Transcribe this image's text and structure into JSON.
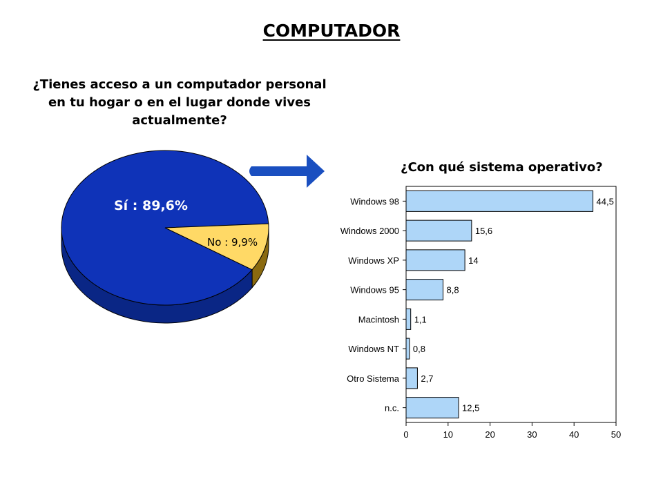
{
  "page": {
    "title": "COMPUTADOR",
    "pie_question": "¿Tienes acceso a un computador personal en tu hogar o en el lugar donde vives actualmente?",
    "bar_question": "¿Con qué sistema operativo?"
  },
  "colors": {
    "pie_yes": "#0f33b8",
    "pie_yes_side": "#0a2685",
    "pie_no": "#ffd966",
    "pie_no_side": "#8a6a10",
    "bar_fill": "#aed6f8",
    "arrow": "#1a4fc0"
  },
  "icons": {
    "arrow": "right-arrow-icon"
  },
  "chart_data": [
    {
      "type": "pie",
      "slices": [
        {
          "label": "Sí : 89,6%",
          "value": 89.6
        },
        {
          "label": "No : 9,9%",
          "value": 9.9
        }
      ]
    },
    {
      "type": "bar",
      "orientation": "horizontal",
      "categories": [
        "Windows 98",
        "Windows 2000",
        "Windows XP",
        "Windows 95",
        "Macintosh",
        "Windows NT",
        "Otro Sistema",
        "n.c."
      ],
      "values": [
        44.5,
        15.6,
        14,
        8.8,
        1.1,
        0.8,
        2.7,
        12.5
      ],
      "value_labels": [
        "44,5",
        "15,6",
        "14",
        "8,8",
        "1,1",
        "0,8",
        "2,7",
        "12,5"
      ],
      "xlim": [
        0,
        50
      ],
      "xticks": [
        0,
        10,
        20,
        30,
        40,
        50
      ],
      "xtick_labels": [
        "0",
        "10",
        "20",
        "30",
        "40",
        "50"
      ],
      "grid": false
    }
  ]
}
